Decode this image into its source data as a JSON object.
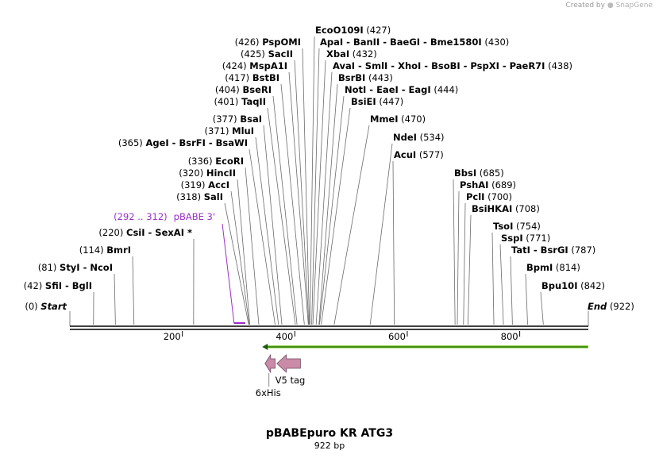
{
  "watermark": {
    "prefix": "Created by",
    "brand": "SnapGene"
  },
  "title": "pBABEpuro KR ATG3",
  "length_label": "922 bp",
  "sequence": {
    "length": 922,
    "ticks": [
      200,
      400,
      600,
      800
    ]
  },
  "colors": {
    "feature_green": "#6fc21f",
    "feature_fill": "#c98ba8",
    "primer": "#9b30c8"
  },
  "start_label": {
    "pos": "(0)",
    "name": "Start"
  },
  "end_label": {
    "pos": "(922)",
    "name": "End"
  },
  "enzymes_left": [
    {
      "pos": "(426)",
      "names": "PspOMI",
      "site": 426
    },
    {
      "pos": "(425)",
      "names": "SacII",
      "site": 425
    },
    {
      "pos": "(424)",
      "names": "MspA1I",
      "site": 424
    },
    {
      "pos": "(417)",
      "names": "BstBI",
      "site": 417
    },
    {
      "pos": "(404)",
      "names": "BseRI",
      "site": 404
    },
    {
      "pos": "(401)",
      "names": "TaqII",
      "site": 401
    },
    {
      "pos": "(377)",
      "names": "BsaI",
      "site": 377
    },
    {
      "pos": "(371)",
      "names": "MluI",
      "site": 371
    },
    {
      "pos": "(365)",
      "names": "AgeI  -  BsrFI  -  BsaWI",
      "site": 365
    },
    {
      "pos": "(336)",
      "names": "EcoRI",
      "site": 336
    },
    {
      "pos": "(320)",
      "names": "HincII",
      "site": 320
    },
    {
      "pos": "(319)",
      "names": "AccI",
      "site": 319
    },
    {
      "pos": "(318)",
      "names": "SalI",
      "site": 318
    },
    {
      "pos": "(220)",
      "names": "CsiI  -  SexAI *",
      "site": 220
    },
    {
      "pos": "(114)",
      "names": "BmrI",
      "site": 114
    },
    {
      "pos": "(81)",
      "names": "StyI  -  NcoI",
      "site": 81
    },
    {
      "pos": "(42)",
      "names": "SfiI  -  BglI",
      "site": 42
    }
  ],
  "enzymes_right": [
    {
      "pos": "(427)",
      "names": "EcoO109I",
      "site": 427
    },
    {
      "pos": "(430)",
      "names": "ApaI  -  BanII  -  BaeGI  -  Bme1580I",
      "site": 430
    },
    {
      "pos": "(432)",
      "names": "XbaI",
      "site": 432
    },
    {
      "pos": "(438)",
      "names": "AvaI  -  SmlI  -  XhoI  -  BsoBI  -  PspXI  -  PaeR7I",
      "site": 438
    },
    {
      "pos": "(443)",
      "names": "BsrBI",
      "site": 443
    },
    {
      "pos": "(444)",
      "names": "NotI  -  EaeI  -  EagI",
      "site": 444
    },
    {
      "pos": "(447)",
      "names": "BsiEI",
      "site": 447
    },
    {
      "pos": "(470)",
      "names": "MmeI",
      "site": 470
    },
    {
      "pos": "(534)",
      "names": "NdeI",
      "site": 534
    },
    {
      "pos": "(577)",
      "names": "AcuI",
      "site": 577
    },
    {
      "pos": "(685)",
      "names": "BbsI",
      "site": 685
    },
    {
      "pos": "(689)",
      "names": "PshAI",
      "site": 689
    },
    {
      "pos": "(700)",
      "names": "PclI",
      "site": 700
    },
    {
      "pos": "(708)",
      "names": "BsiHKAI",
      "site": 708
    },
    {
      "pos": "(754)",
      "names": "TsoI",
      "site": 754
    },
    {
      "pos": "(771)",
      "names": "SspI",
      "site": 771
    },
    {
      "pos": "(787)",
      "names": "TatI  -  BsrGI",
      "site": 787
    },
    {
      "pos": "(814)",
      "names": "BpmI",
      "site": 814
    },
    {
      "pos": "(842)",
      "names": "Bpu10I",
      "site": 842
    }
  ],
  "primer": {
    "range": "(292 .. 312)",
    "name": "pBABE 3'",
    "start": 292,
    "end": 312
  },
  "features": [
    {
      "name": "V5 tag",
      "start": 368,
      "end": 410
    },
    {
      "name": "6xHis",
      "start": 347,
      "end": 365
    }
  ],
  "long_feature": {
    "start": 342,
    "end": 922
  }
}
